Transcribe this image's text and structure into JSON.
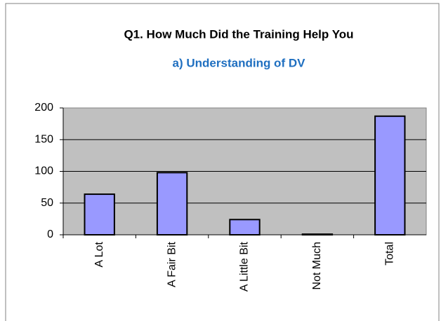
{
  "chart_data": {
    "type": "bar",
    "title": "Q1. How Much Did the Training Help You",
    "subtitle": "a) Understanding of DV",
    "categories": [
      "A Lot",
      "A Fair Bit",
      "A Little Bit",
      "Not Much",
      "Total"
    ],
    "values": [
      64,
      98,
      24,
      1,
      187
    ],
    "color": "#9999ff",
    "ylim": [
      0,
      200
    ],
    "yticks": [
      0,
      50,
      100,
      150,
      200
    ],
    "grid": true
  }
}
